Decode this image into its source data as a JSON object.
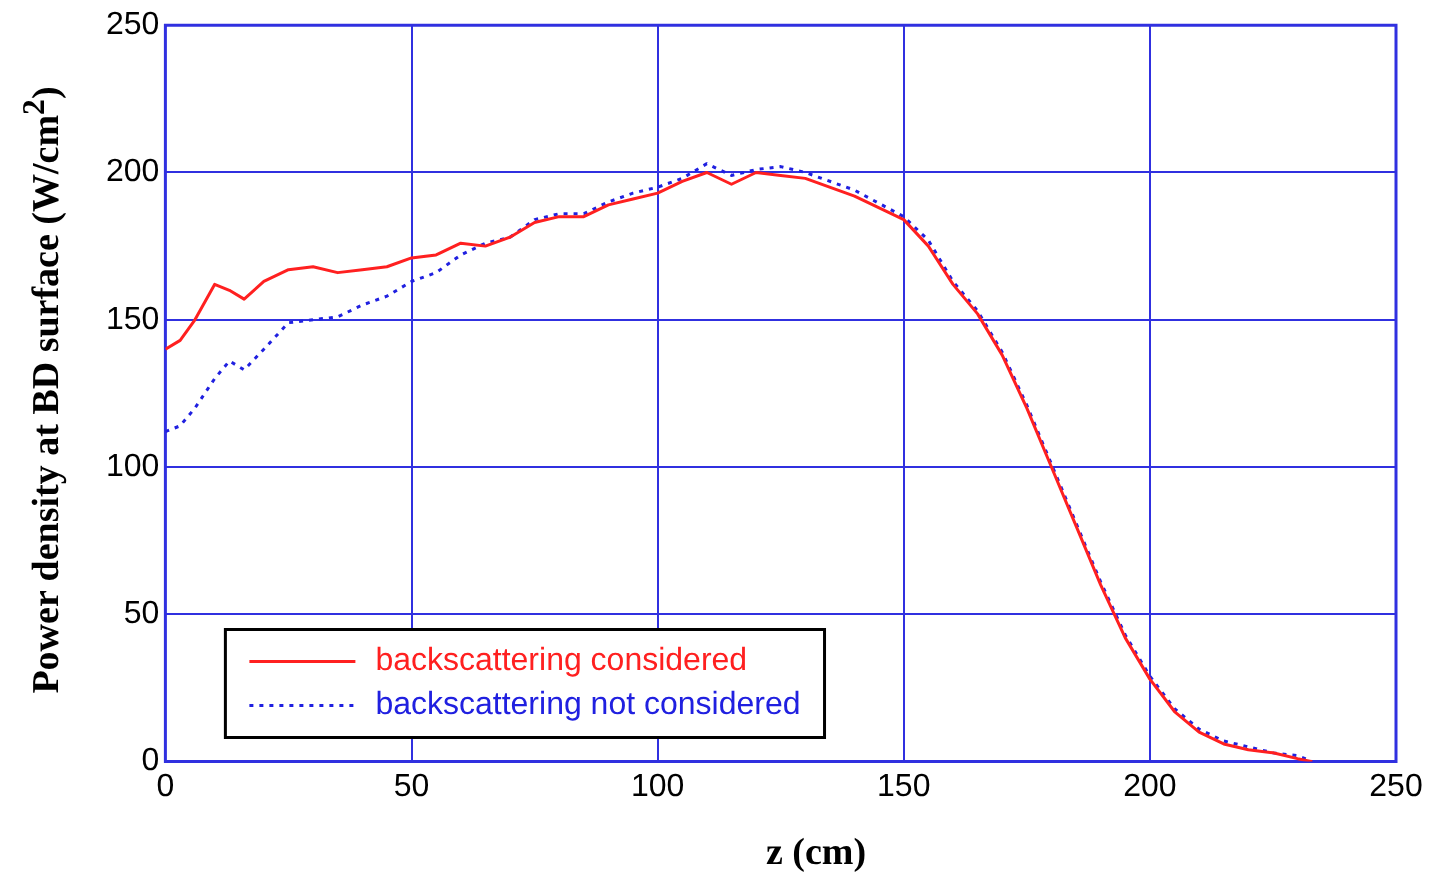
{
  "chart_data": {
    "type": "line",
    "xlabel": "z (cm)",
    "ylabel": "Power density at BD surface (W/cm$^{2}$)",
    "xlim": [
      0,
      250
    ],
    "ylim": [
      0,
      250
    ],
    "xticks": [
      0,
      50,
      100,
      150,
      200,
      250
    ],
    "yticks": [
      0,
      50,
      100,
      150,
      200,
      250
    ],
    "grid": true,
    "legend": "bottom left",
    "marker": "none",
    "series": [
      {
        "name": "backscattering considered",
        "color": "#ff2020",
        "line_style": "solid",
        "x": [
          0,
          3,
          6,
          10,
          13,
          16,
          20,
          25,
          30,
          35,
          40,
          45,
          50,
          55,
          60,
          65,
          70,
          75,
          80,
          85,
          90,
          95,
          100,
          105,
          110,
          115,
          120,
          125,
          130,
          140,
          150,
          155,
          160,
          165,
          170,
          175,
          180,
          185,
          190,
          195,
          200,
          205,
          210,
          215,
          220,
          225,
          230,
          233
        ],
        "values": [
          140,
          143,
          150,
          162,
          160,
          157,
          163,
          167,
          168,
          166,
          167,
          168,
          171,
          172,
          176,
          175,
          178,
          183,
          185,
          185,
          189,
          191,
          193,
          197,
          200,
          196,
          200,
          199,
          198,
          192,
          184,
          175,
          162,
          152,
          138,
          120,
          100,
          80,
          60,
          42,
          28,
          17,
          10,
          6,
          4,
          3,
          1,
          0
        ]
      },
      {
        "name": "backscattering not considered",
        "color": "#2020e0",
        "line_style": "dotted",
        "x": [
          0,
          3,
          6,
          10,
          13,
          16,
          20,
          25,
          30,
          35,
          40,
          45,
          50,
          55,
          60,
          65,
          70,
          75,
          80,
          85,
          90,
          95,
          100,
          105,
          110,
          115,
          120,
          125,
          130,
          140,
          150,
          155,
          160,
          165,
          170,
          175,
          180,
          185,
          190,
          195,
          200,
          205,
          210,
          215,
          220,
          225,
          230,
          233
        ],
        "values": [
          112,
          114,
          120,
          130,
          136,
          133,
          140,
          149,
          150,
          151,
          155,
          158,
          163,
          166,
          172,
          176,
          178,
          184,
          186,
          186,
          190,
          193,
          195,
          198,
          203,
          199,
          201,
          202,
          200,
          194,
          185,
          177,
          163,
          153,
          139,
          121,
          101,
          81,
          61,
          43,
          29,
          18,
          11,
          7,
          5,
          3,
          2,
          0
        ]
      }
    ]
  }
}
